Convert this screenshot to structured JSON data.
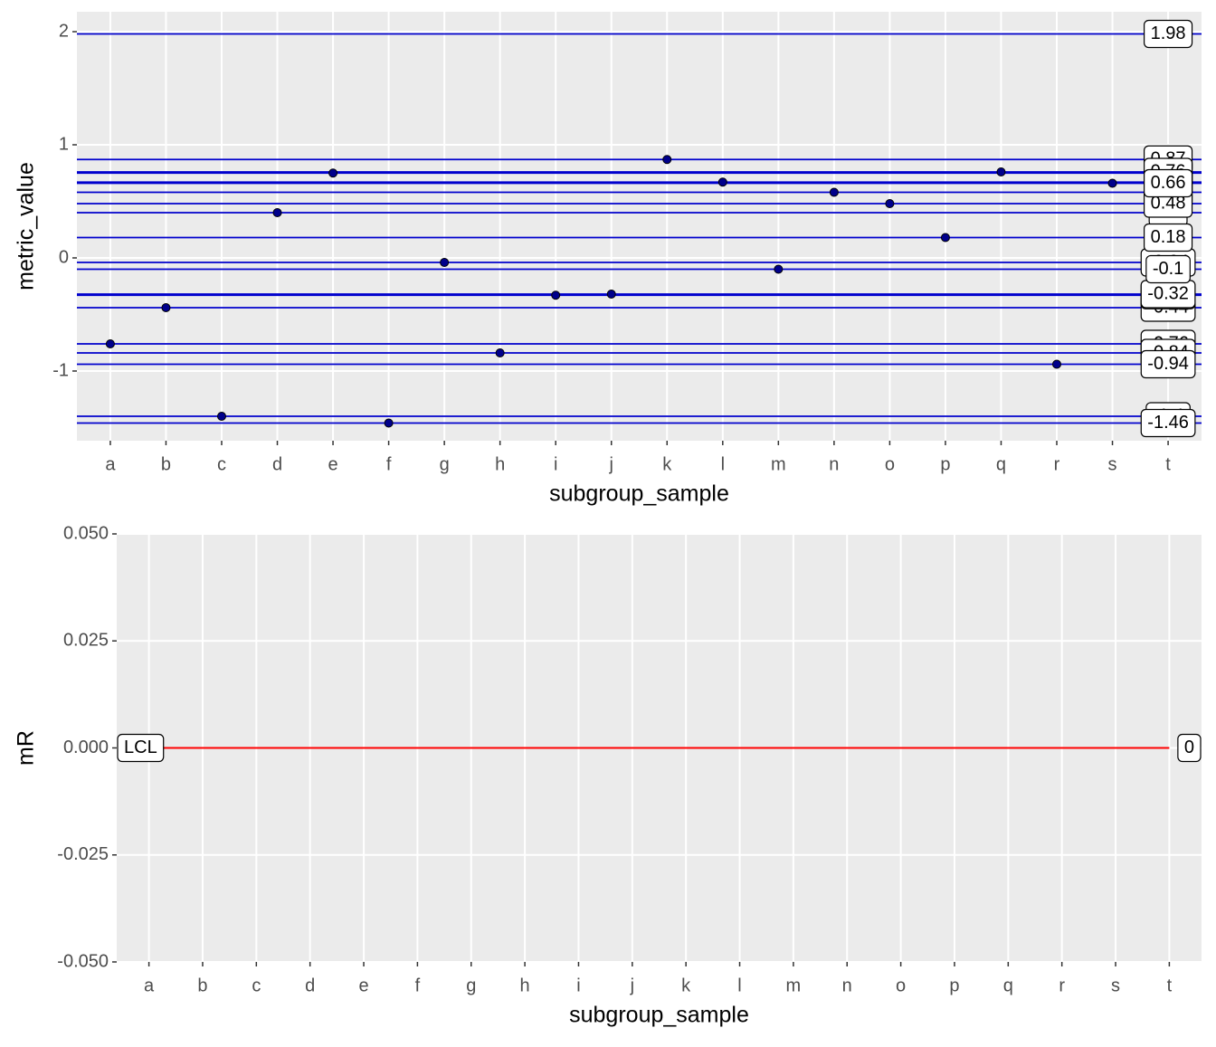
{
  "chart_data": [
    {
      "type": "scatter",
      "xlabel": "subgroup_sample",
      "ylabel": "metric_value",
      "categories": [
        "a",
        "b",
        "c",
        "d",
        "e",
        "f",
        "g",
        "h",
        "i",
        "j",
        "k",
        "l",
        "m",
        "n",
        "o",
        "p",
        "q",
        "r",
        "s",
        "t"
      ],
      "values": [
        -0.76,
        -0.44,
        -1.4,
        0.4,
        0.75,
        -1.46,
        -0.04,
        -0.84,
        -0.33,
        -0.32,
        0.87,
        0.67,
        -0.1,
        0.58,
        0.48,
        0.18,
        0.76,
        -0.94,
        0.66,
        1.98
      ],
      "color": "#00008b",
      "line_color": "#0000cd",
      "ylim": [
        -1.616,
        2.176
      ],
      "yticks": [
        -1,
        0,
        1,
        2
      ],
      "grid": true
    },
    {
      "type": "hline",
      "xlabel": "subgroup_sample",
      "ylabel": "mR",
      "categories": [
        "a",
        "b",
        "c",
        "d",
        "e",
        "f",
        "g",
        "h",
        "i",
        "j",
        "k",
        "l",
        "m",
        "n",
        "o",
        "p",
        "q",
        "r",
        "s",
        "t"
      ],
      "lines": [
        {
          "name": "LCL",
          "value": 0,
          "color": "#ff0000"
        }
      ],
      "ylim": [
        -0.05,
        0.05
      ],
      "yticks": [
        {
          "value": -0.05,
          "label": "-0.050"
        },
        {
          "value": -0.025,
          "label": "-0.025"
        },
        {
          "value": 0,
          "label": "0.000"
        },
        {
          "value": 0.025,
          "label": "0.025"
        },
        {
          "value": 0.05,
          "label": "0.050"
        }
      ],
      "grid": true
    }
  ]
}
